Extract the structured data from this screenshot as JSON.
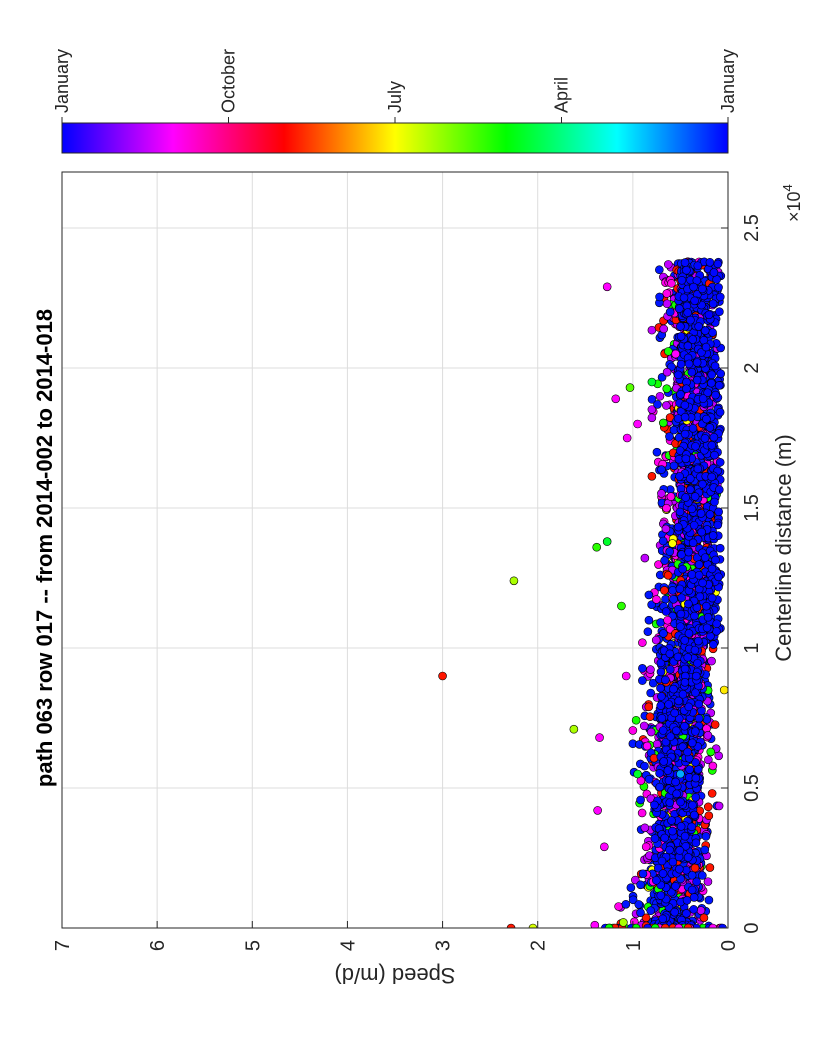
{
  "colors": {
    "grid": "#dddddd",
    "axis": "#262626",
    "marker_edge": "#000000",
    "background": "#ffffff"
  },
  "chart_data": {
    "type": "scatter",
    "orientation": "rotated 90 degrees counter-clockwise",
    "title": "path 063 row 017  -- from 2014-002 to 2014-018",
    "xlabel": "Centerline distance (m)",
    "ylabel": "Speed (m/d)",
    "x_exponent_label": "×10",
    "x_exponent_power": "4",
    "xlim": [
      0,
      2.7
    ],
    "x_ticks": [
      0,
      0.5,
      1,
      1.5,
      2,
      2.5
    ],
    "x_tick_labels": [
      "0",
      "0.5",
      "1",
      "1.5",
      "2",
      "2.5"
    ],
    "ylim": [
      0,
      7
    ],
    "y_ticks": [
      0,
      1,
      2,
      3,
      4,
      5,
      6,
      7
    ],
    "y_tick_labels": [
      "0",
      "1",
      "2",
      "3",
      "4",
      "5",
      "6",
      "7"
    ],
    "grid": true,
    "colormap": "hsv (blue, magenta, red, yellow, green, cyan, blue)",
    "colorbar": {
      "labels": [
        "January",
        "October",
        "July",
        "April",
        "January"
      ],
      "label_positions": [
        0,
        0.25,
        0.5,
        0.75,
        1.0
      ]
    },
    "series": [
      {
        "values_note": "points: [x (×10^4 m), speed (m/d), hue (0-360)]",
        "points": [
          [
            0.0,
            2.28,
            5
          ],
          [
            0.0,
            2.05,
            70
          ],
          [
            0.01,
            1.4,
            300
          ],
          [
            0.0,
            1.25,
            120
          ],
          [
            0.02,
            1.1,
            80
          ],
          [
            0.29,
            1.3,
            300
          ],
          [
            0.42,
            1.37,
            300
          ],
          [
            0.68,
            1.35,
            300
          ],
          [
            0.71,
            1.62,
            80
          ],
          [
            0.9,
            3.0,
            5
          ],
          [
            0.9,
            1.07,
            300
          ],
          [
            1.15,
            1.12,
            110
          ],
          [
            1.24,
            2.25,
            80
          ],
          [
            1.36,
            1.38,
            110
          ],
          [
            1.38,
            1.27,
            130
          ],
          [
            1.75,
            1.06,
            300
          ],
          [
            1.89,
            1.18,
            300
          ],
          [
            1.93,
            1.03,
            100
          ],
          [
            2.29,
            1.27,
            300
          ],
          [
            1.13,
            0.65,
            240
          ],
          [
            0.85,
            0.04,
            55
          ],
          [
            0.45,
            0.5,
            240
          ],
          [
            2.19,
            0.2,
            240
          ],
          [
            2.24,
            0.35,
            240
          ],
          [
            0.65,
            0.85,
            300
          ],
          [
            0.55,
            0.95,
            130
          ],
          [
            0.55,
            0.5,
            200
          ],
          [
            1.95,
            0.8,
            130
          ],
          [
            1.8,
            0.95,
            300
          ],
          [
            2.05,
            0.55,
            300
          ]
        ]
      }
    ]
  }
}
